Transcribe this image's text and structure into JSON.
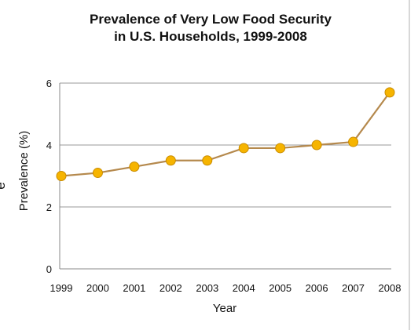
{
  "chart_data": {
    "type": "line",
    "title_line1": "Prevalence of Very Low Food Security",
    "title_line2": "in U.S. Households, 1999-2008",
    "xlabel": "Year",
    "ylabel": "Prevalence (%)",
    "categories": [
      "1999",
      "2000",
      "2001",
      "2002",
      "2003",
      "2004",
      "2005",
      "2006",
      "2007",
      "2008"
    ],
    "series": [
      {
        "values": [
          3.0,
          3.1,
          3.3,
          3.5,
          3.5,
          3.9,
          3.9,
          4.0,
          4.1,
          5.7
        ]
      }
    ],
    "ylim": [
      0,
      6
    ],
    "yticks": [
      0,
      2,
      4,
      6
    ],
    "grid": "horizontal",
    "legend": "none",
    "line_color": "#b5894d",
    "marker_fill": "#f6b400",
    "marker_stroke": "#c98c00"
  },
  "page": {
    "edge_glyph": "e"
  }
}
